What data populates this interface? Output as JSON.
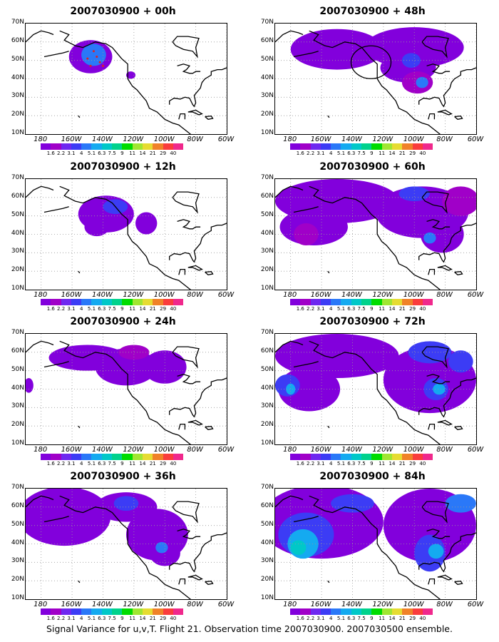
{
  "caption": "Signal Variance for u,v,T. Flight 21. Observation time 2007030900. 2007030500 ensemble.",
  "lat_labels": [
    "70N",
    "60N",
    "50N",
    "40N",
    "30N",
    "20N",
    "10N"
  ],
  "lon_labels": [
    "180",
    "160W",
    "140W",
    "120W",
    "100W",
    "80W",
    "60W"
  ],
  "colorbar": {
    "labels": [
      "1.6",
      "2.2",
      "3.1",
      "4",
      "5.1",
      "6.3",
      "7.5",
      "9",
      "11",
      "14",
      "21",
      "29",
      "40"
    ],
    "colors": [
      "#8200dc",
      "#a000c8",
      "#6e28f0",
      "#3c3cf5",
      "#2a78f8",
      "#14aaf0",
      "#00c8c8",
      "#00d28c",
      "#00dc00",
      "#a0e632",
      "#e6dc32",
      "#f08228",
      "#fa3c3c",
      "#f0288c"
    ]
  },
  "panels": [
    {
      "title": "2007030900 + 00h"
    },
    {
      "title": "2007030900 + 48h"
    },
    {
      "title": "2007030900 + 12h"
    },
    {
      "title": "2007030900 + 60h"
    },
    {
      "title": "2007030900 + 24h"
    },
    {
      "title": "2007030900 + 72h"
    },
    {
      "title": "2007030900 + 36h"
    },
    {
      "title": "2007030900 + 84h"
    }
  ]
}
